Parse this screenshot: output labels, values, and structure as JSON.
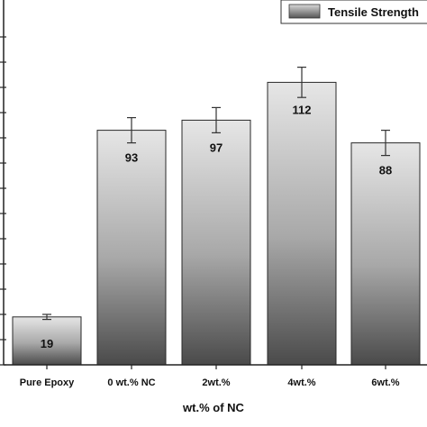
{
  "chart_data": {
    "type": "bar",
    "categories": [
      "Pure Epoxy",
      "0 wt.% NC",
      "2wt.%",
      "4wt.%",
      "6wt.%"
    ],
    "series": [
      {
        "name": "Tensile Strength",
        "values": [
          19,
          93,
          97,
          112,
          88
        ],
        "errors": [
          1,
          5,
          5,
          6,
          5
        ]
      }
    ],
    "data_labels": [
      "19",
      "93",
      "97",
      "112",
      "88"
    ],
    "title": "",
    "xlabel": "wt.% of NC",
    "ylabel": "",
    "ylim": [
      0,
      135
    ],
    "y_tick_values": [
      0,
      10,
      20,
      30,
      40,
      50,
      60,
      70,
      80,
      90,
      100,
      110,
      120,
      130
    ],
    "grid": false,
    "legend_position": "top-right",
    "colors": {
      "bar_top": "#e6e6e6",
      "bar_mid": "#a8a8a8",
      "bar_bottom": "#4a4a4a",
      "legend_swatch_top": "#d9d9d9",
      "legend_swatch_bottom": "#555555",
      "axis": "#222222"
    }
  }
}
